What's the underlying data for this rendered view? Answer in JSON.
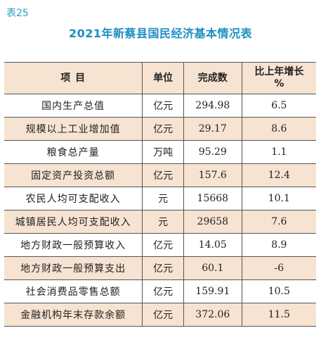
{
  "table_label": "表25",
  "title": "2021年新蔡县国民经济基本情况表",
  "headers": {
    "item": "项  目",
    "unit": "单位",
    "completed": "完成数",
    "growth_line1": "比上年增长",
    "growth_line2": "%"
  },
  "rows": [
    {
      "item": "国内生产总值",
      "unit": "亿元",
      "completed": "294.98",
      "growth": "6.5"
    },
    {
      "item": "规模以上工业增加值",
      "unit": "亿元",
      "completed": "29.17",
      "growth": "8.6"
    },
    {
      "item": "粮食总产量",
      "unit": "万吨",
      "completed": "95.29",
      "growth": "1.1"
    },
    {
      "item": "固定资产投资总额",
      "unit": "亿元",
      "completed": "157.6",
      "growth": "12.4"
    },
    {
      "item": "农民人均可支配收入",
      "unit": "元",
      "completed": "15668",
      "growth": "10.1"
    },
    {
      "item": "城镇居民人均可支配收入",
      "unit": "元",
      "completed": "29658",
      "growth": "7.6"
    },
    {
      "item": "地方财政一般预算收入",
      "unit": "亿元",
      "completed": "14.05",
      "growth": "8.9"
    },
    {
      "item": "地方财政一般预算支出",
      "unit": "亿元",
      "completed": "60.1",
      "growth": "-6"
    },
    {
      "item": "社会消费品零售总额",
      "unit": "亿元",
      "completed": "159.91",
      "growth": "10.5"
    },
    {
      "item": "金融机构年末存款余额",
      "unit": "亿元",
      "completed": "372.06",
      "growth": "11.5"
    }
  ],
  "colors": {
    "accent": "#1e8ec4",
    "row_shade": "#f6e3d2"
  }
}
